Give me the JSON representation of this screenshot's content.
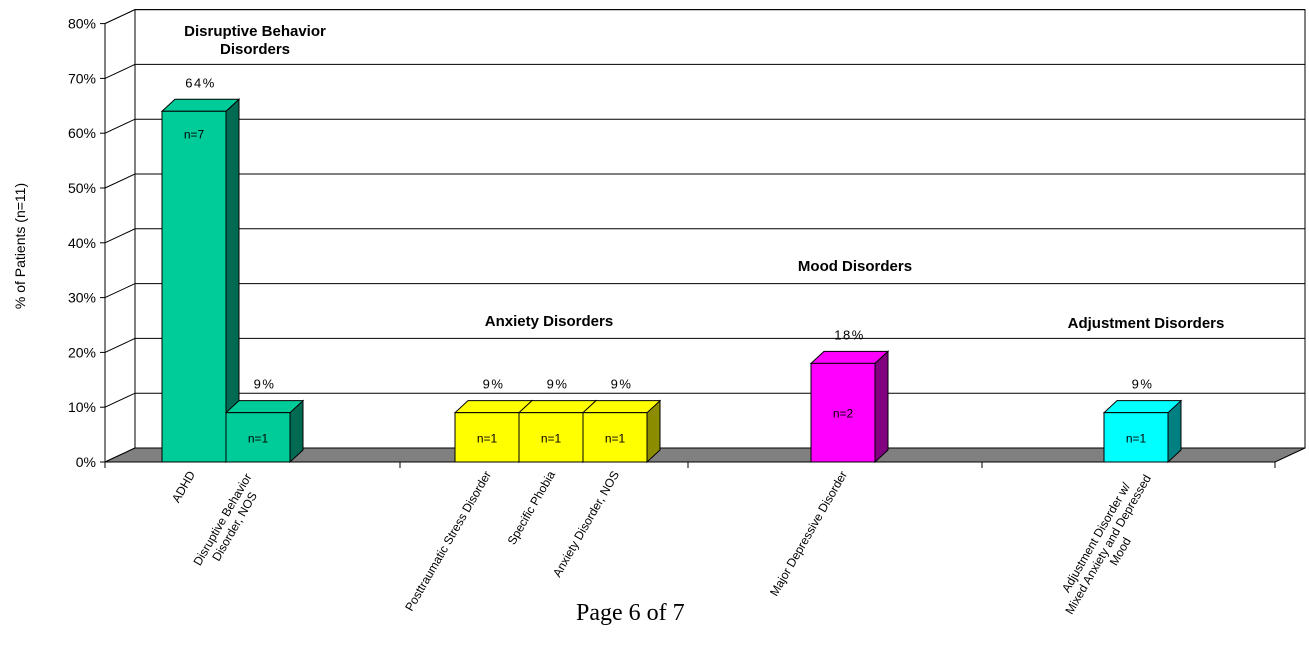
{
  "chart_data": {
    "type": "bar",
    "ylabel": "% of Patients (n=11)",
    "xlabel": "",
    "ylim": [
      0,
      80
    ],
    "yticks": [
      0,
      10,
      20,
      30,
      40,
      50,
      60,
      70,
      80
    ],
    "ytick_labels": [
      "0%",
      "10%",
      "20%",
      "30%",
      "40%",
      "50%",
      "60%",
      "70%",
      "80%"
    ],
    "grid": true,
    "style": "3d-bar",
    "bars": [
      {
        "category": "ADHD",
        "value": 64,
        "value_label": "64%",
        "n_label": "n=7",
        "group": "Disruptive Behavior Disorders",
        "color": "#00cc99",
        "side_color": "#006a52"
      },
      {
        "category": "Disruptive Behavior Disorder, NOS",
        "value": 9,
        "value_label": "9%",
        "n_label": "n=1",
        "group": "Disruptive Behavior Disorders",
        "color": "#00cc99",
        "side_color": "#006a52"
      },
      {
        "category": "Posttraumatic Stress Disorder",
        "value": 9,
        "value_label": "9%",
        "n_label": "n=1",
        "group": "Anxiety Disorders",
        "color": "#ffff00",
        "side_color": "#8c8c00"
      },
      {
        "category": "Specific Phobia",
        "value": 9,
        "value_label": "9%",
        "n_label": "n=1",
        "group": "Anxiety Disorders",
        "color": "#ffff00",
        "side_color": "#8c8c00"
      },
      {
        "category": "Anxiety Disorder, NOS",
        "value": 9,
        "value_label": "9%",
        "n_label": "n=1",
        "group": "Anxiety Disorders",
        "color": "#ffff00",
        "side_color": "#8c8c00"
      },
      {
        "category": "Major Depressive Disorder",
        "value": 18,
        "value_label": "18%",
        "n_label": "n=2",
        "group": "Mood Disorders",
        "color": "#ff00ff",
        "side_color": "#800080"
      },
      {
        "category": "Adjustment Disorder w/ Mixed Anxiety and Depressed Mood",
        "value": 9,
        "value_label": "9%",
        "n_label": "n=1",
        "group": "Adjustment Disorders",
        "color": "#00ffff",
        "side_color": "#008080"
      }
    ],
    "category_lines": [
      [
        "ADHD"
      ],
      [
        "Disruptive Behavior",
        "Disorder, NOS"
      ],
      [
        "Posttraumatic Stress Disorder"
      ],
      [
        "Specific Phobia"
      ],
      [
        "Anxiety Disorder, NOS"
      ],
      [
        "Major Depressive Disorder"
      ],
      [
        "Adjustment Disorder w/",
        "Mixed Anxiety and Depressed",
        "Mood"
      ]
    ],
    "group_labels": [
      {
        "lines": [
          "Disruptive Behavior",
          "Disorders"
        ]
      },
      {
        "lines": [
          "Anxiety Disorders"
        ]
      },
      {
        "lines": [
          "Mood Disorders"
        ]
      },
      {
        "lines": [
          "Adjustment Disorders"
        ]
      }
    ]
  },
  "footer": {
    "page_label": "Page 6 of 7"
  }
}
